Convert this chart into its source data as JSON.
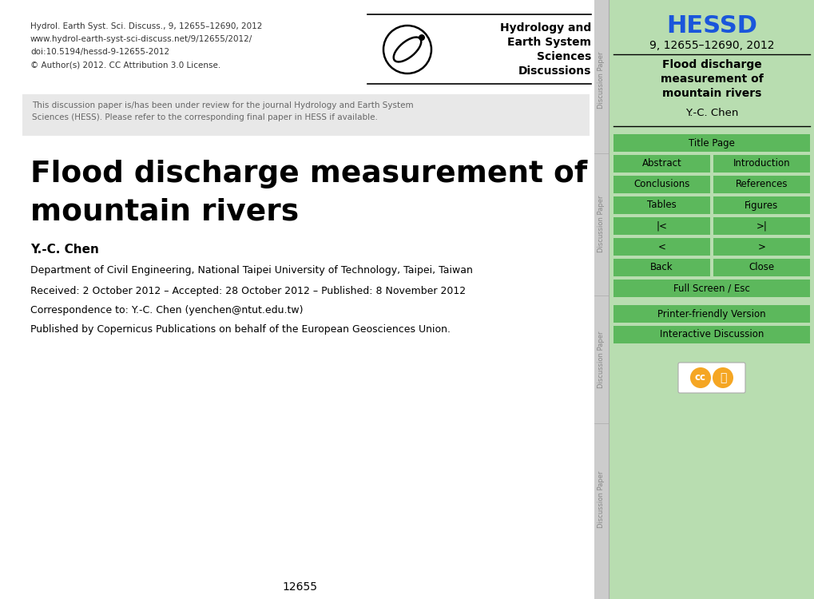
{
  "page_bg": "#ffffff",
  "right_panel_bg": "#b8ddb0",
  "header_line1": "Hydrol. Earth Syst. Sci. Discuss., 9, 12655–12690, 2012",
  "header_line2": "www.hydrol-earth-syst-sci-discuss.net/9/12655/2012/",
  "header_line3": "doi:10.5194/hessd-9-12655-2012",
  "header_line4": "© Author(s) 2012. CC Attribution 3.0 License.",
  "journal_name_line1": "Hydrology and",
  "journal_name_line2": "Earth System",
  "journal_name_line3": "Sciences",
  "journal_name_line4": "Discussions",
  "review_text": "This discussion paper is/has been under review for the journal Hydrology and Earth System\nSciences (HESS). Please refer to the corresponding final paper in HESS if available.",
  "hessd_title": "HESSD",
  "hessd_subtitle": "9, 12655–12690, 2012",
  "paper_title_line1": "Flood discharge",
  "paper_title_line2": "measurement of",
  "paper_title_line3": "mountain rivers",
  "paper_author": "Y.-C. Chen",
  "main_title_line1": "Flood discharge measurement of",
  "main_title_line2": "mountain rivers",
  "author_bold": "Y.-C. Chen",
  "affiliation": "Department of Civil Engineering, National Taipei University of Technology, Taipei, Taiwan",
  "received": "Received: 2 October 2012 – Accepted: 28 October 2012 – Published: 8 November 2012",
  "correspondence": "Correspondence to: Y.-C. Chen (yenchen@ntut.edu.tw)",
  "published": "Published by Copernicus Publications on behalf of the European Geosciences Union.",
  "page_number": "12655",
  "btn_green": "#5cb85c",
  "btn_text": "#000000",
  "hessd_color": "#1a56db",
  "sidebar_color": "#cccccc",
  "sidebar_text_color": "#888888",
  "review_bg": "#e8e8e8",
  "review_text_color": "#666666"
}
